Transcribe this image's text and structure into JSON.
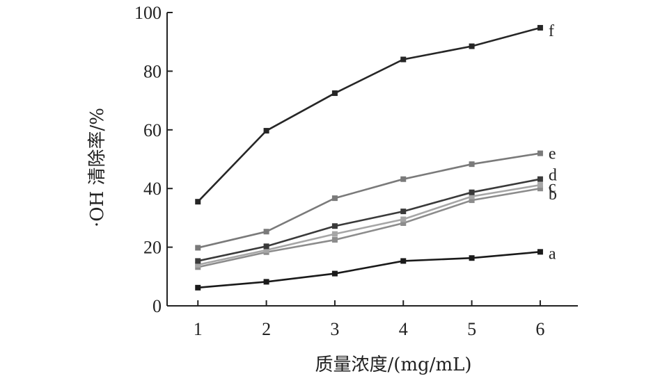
{
  "chart_data": {
    "type": "line",
    "xlabel": "质量浓度/(mg/mL)",
    "ylabel": "·OH 清除率/%",
    "x": [
      1,
      2,
      3,
      4,
      5,
      6
    ],
    "xlim": [
      0.55,
      6.55
    ],
    "ylim": [
      0,
      100
    ],
    "yticks": [
      0,
      20,
      40,
      60,
      80,
      100
    ],
    "xticks": [
      1,
      2,
      3,
      4,
      5,
      6
    ],
    "grid": false,
    "series": [
      {
        "name": "a",
        "color": "#1a1a1a",
        "values": [
          6.2,
          8.2,
          11.0,
          15.3,
          16.3,
          18.4
        ]
      },
      {
        "name": "b",
        "color": "#8c8c8c",
        "values": [
          13.2,
          18.3,
          22.5,
          28.2,
          36.0,
          40.0
        ]
      },
      {
        "name": "c",
        "color": "#a6a6a6",
        "values": [
          14.0,
          19.0,
          24.5,
          29.5,
          37.3,
          41.2
        ]
      },
      {
        "name": "d",
        "color": "#3a3a3a",
        "values": [
          15.3,
          20.3,
          27.2,
          32.2,
          38.7,
          43.2
        ]
      },
      {
        "name": "e",
        "color": "#7a7a7a",
        "values": [
          19.8,
          25.3,
          36.7,
          43.2,
          48.3,
          52.0
        ]
      },
      {
        "name": "f",
        "color": "#262626",
        "values": [
          35.5,
          59.7,
          72.5,
          84.0,
          88.5,
          94.8
        ]
      }
    ]
  }
}
